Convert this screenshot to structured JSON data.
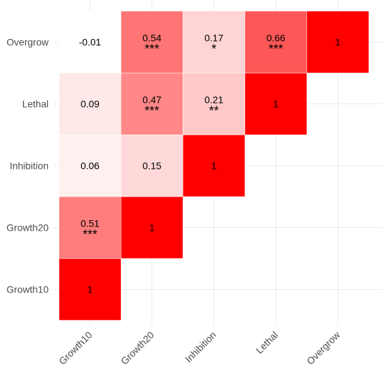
{
  "chart_data": {
    "type": "heatmap",
    "title": "",
    "xlabel": "",
    "ylabel": "",
    "x_categories": [
      "Growth10",
      "Growth20",
      "Inhibition",
      "Lethal",
      "Overgrow"
    ],
    "y_categories": [
      "Growth10",
      "Growth20",
      "Inhibition",
      "Lethal",
      "Overgrow"
    ],
    "grid": true,
    "legend": "none",
    "color_low": "#ffffff",
    "color_high": "#ff0000",
    "cells": [
      {
        "x": "Growth10",
        "y": "Growth10",
        "value": 1,
        "label": "1",
        "sig": ""
      },
      {
        "x": "Growth10",
        "y": "Growth20",
        "value": 0.51,
        "label": "0.51",
        "sig": "***"
      },
      {
        "x": "Growth10",
        "y": "Inhibition",
        "value": 0.06,
        "label": "0.06",
        "sig": ""
      },
      {
        "x": "Growth10",
        "y": "Lethal",
        "value": 0.09,
        "label": "0.09",
        "sig": ""
      },
      {
        "x": "Growth10",
        "y": "Overgrow",
        "value": -0.01,
        "label": "-0.01",
        "sig": ""
      },
      {
        "x": "Growth20",
        "y": "Growth20",
        "value": 1,
        "label": "1",
        "sig": ""
      },
      {
        "x": "Growth20",
        "y": "Inhibition",
        "value": 0.15,
        "label": "0.15",
        "sig": ""
      },
      {
        "x": "Growth20",
        "y": "Lethal",
        "value": 0.47,
        "label": "0.47",
        "sig": "***"
      },
      {
        "x": "Growth20",
        "y": "Overgrow",
        "value": 0.54,
        "label": "0.54",
        "sig": "***"
      },
      {
        "x": "Inhibition",
        "y": "Inhibition",
        "value": 1,
        "label": "1",
        "sig": ""
      },
      {
        "x": "Inhibition",
        "y": "Lethal",
        "value": 0.21,
        "label": "0.21",
        "sig": "**"
      },
      {
        "x": "Inhibition",
        "y": "Overgrow",
        "value": 0.17,
        "label": "0.17",
        "sig": "*"
      },
      {
        "x": "Lethal",
        "y": "Lethal",
        "value": 1,
        "label": "1",
        "sig": ""
      },
      {
        "x": "Lethal",
        "y": "Overgrow",
        "value": 0.66,
        "label": "0.66",
        "sig": "***"
      },
      {
        "x": "Overgrow",
        "y": "Overgrow",
        "value": 1,
        "label": "1",
        "sig": ""
      }
    ]
  }
}
